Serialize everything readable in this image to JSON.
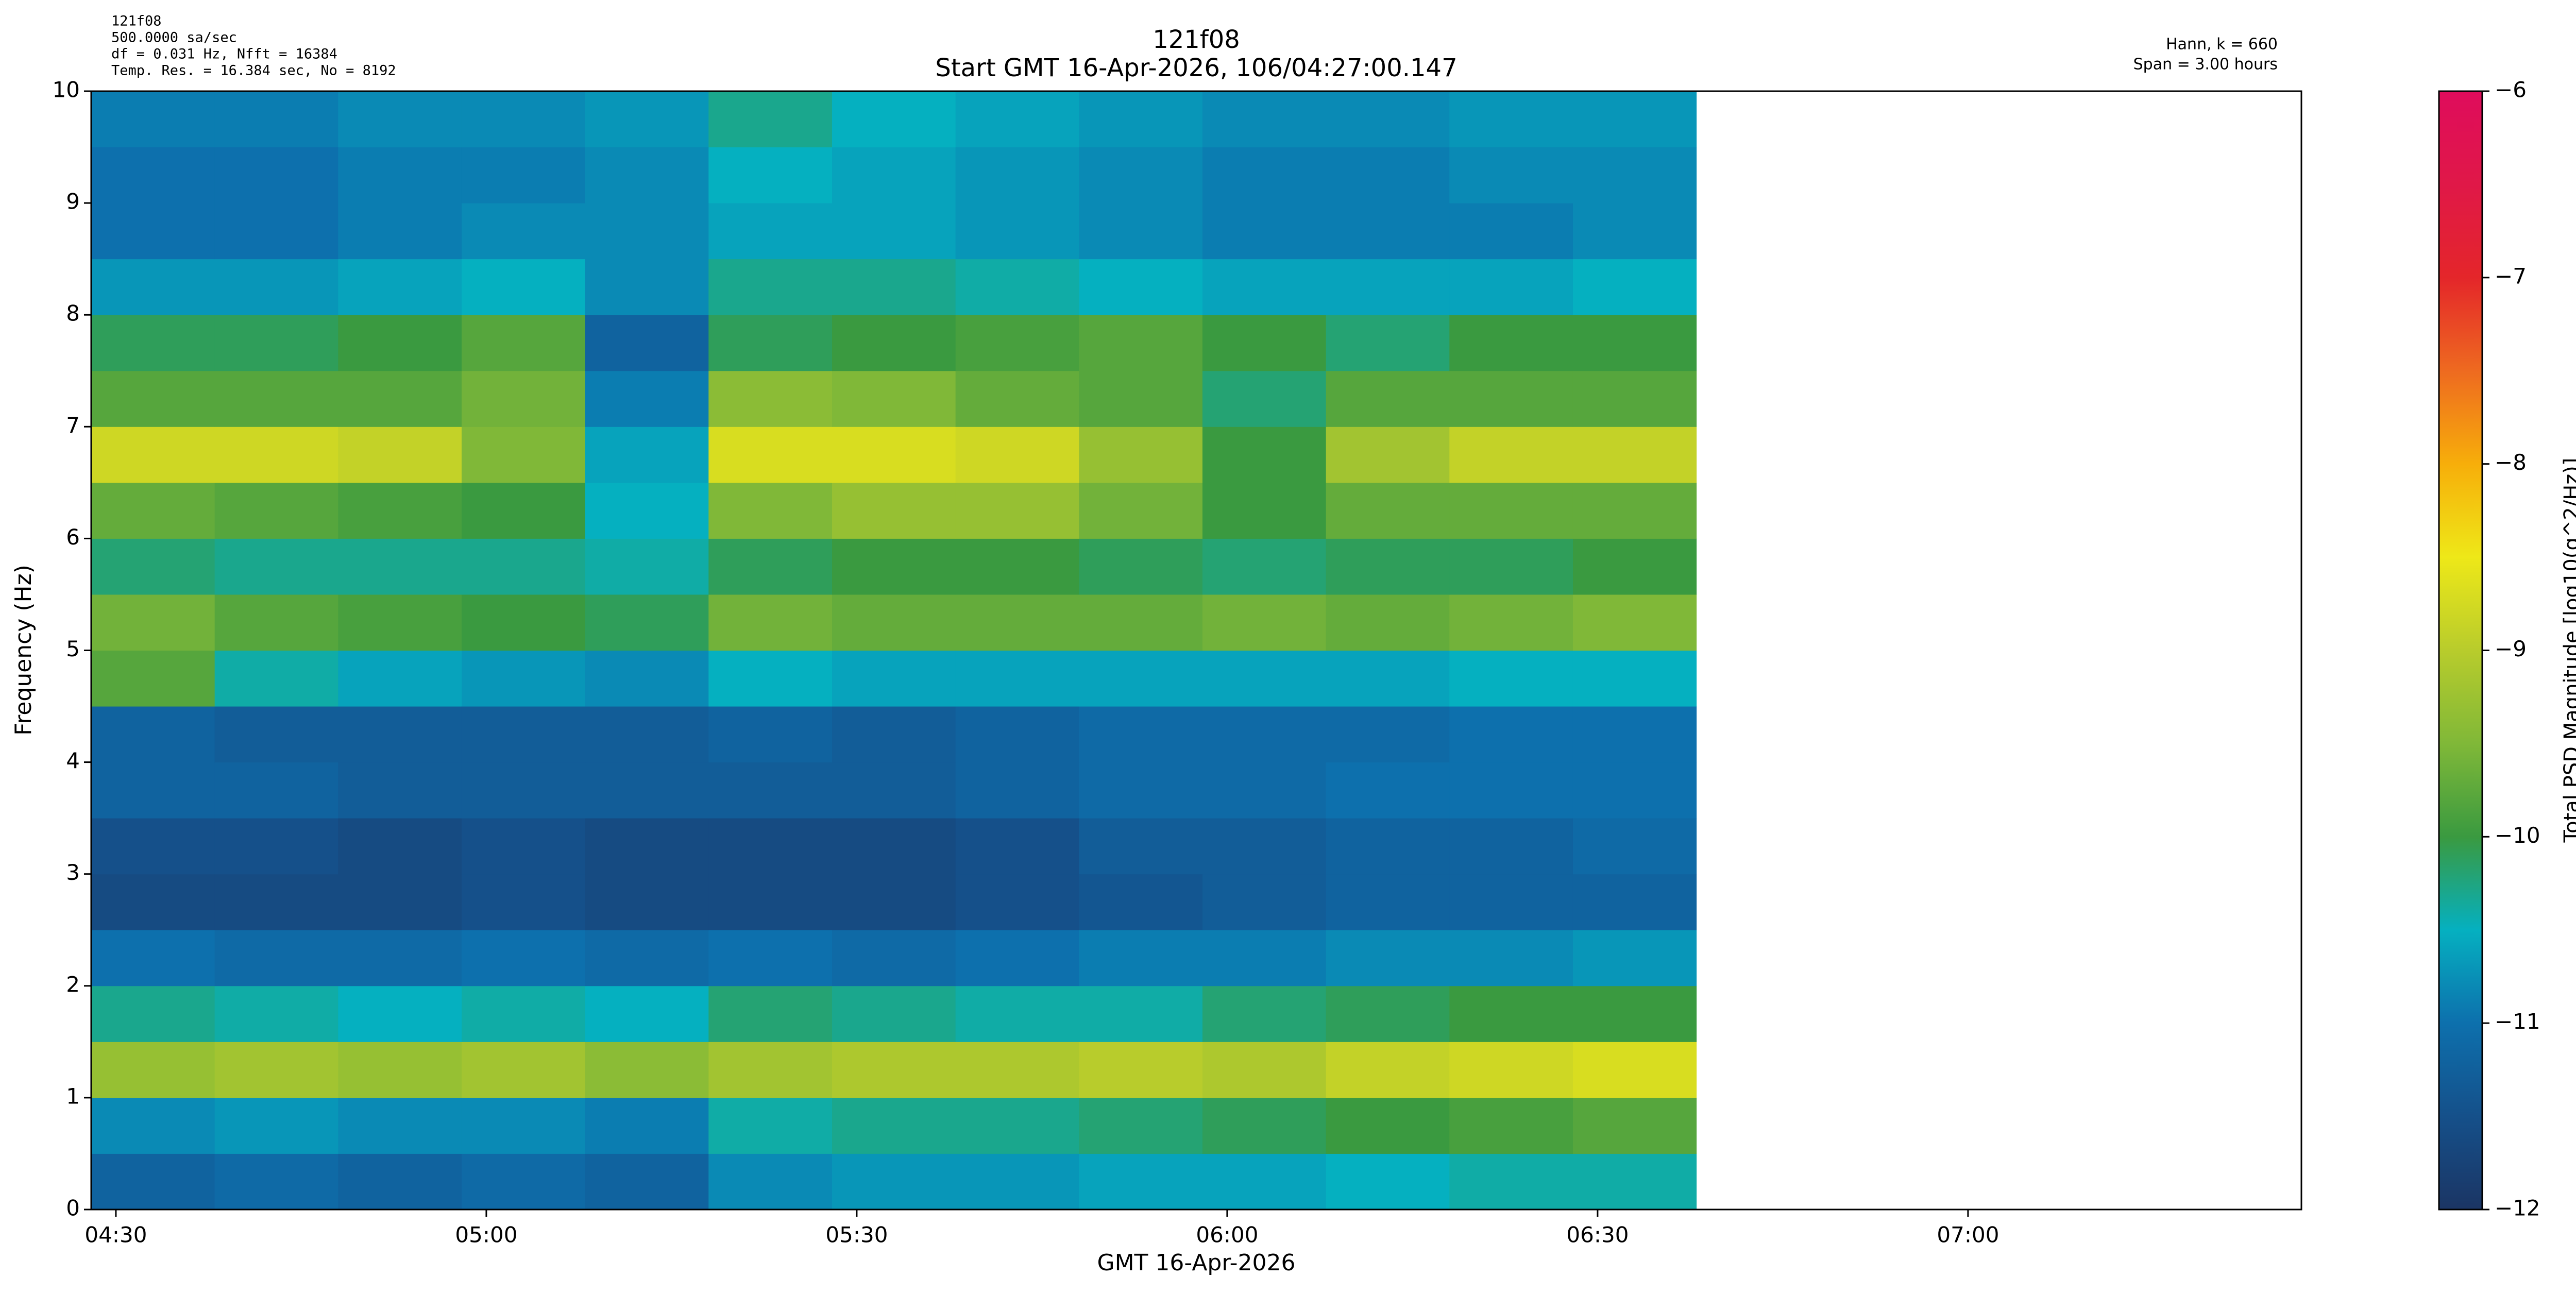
{
  "chart_data": {
    "type": "heatmap",
    "title": "121f08",
    "subtitle": "Start GMT 16-Apr-2026, 106/04:27:00.147",
    "top_left_notes": [
      "121f08",
      "500.0000 sa/sec",
      "df = 0.031 Hz,  Nfft = 16384",
      "Temp. Res. = 16.384 sec, No = 8192"
    ],
    "top_right_notes": [
      "Hann, k = 660",
      "Span = 3.00 hours"
    ],
    "xlabel": "GMT 16-Apr-2026",
    "ylabel": "Frequency (Hz)",
    "xlim": [
      "04:28",
      "07:27"
    ],
    "xticks": [
      "04:30",
      "05:00",
      "05:30",
      "06:00",
      "06:30",
      "07:00"
    ],
    "ylim": [
      0,
      10
    ],
    "yticks": [
      0,
      1,
      2,
      3,
      4,
      5,
      6,
      7,
      8,
      9,
      10
    ],
    "x_edges": [
      "04:28",
      "04:38",
      "04:48",
      "04:58",
      "05:08",
      "05:18",
      "05:28",
      "05:38",
      "05:48",
      "05:58",
      "06:08",
      "06:18",
      "06:28",
      "06:38"
    ],
    "y_edges": [
      0,
      0.5,
      1,
      1.5,
      2,
      2.5,
      3,
      3.5,
      4,
      4.5,
      5,
      5.5,
      6,
      6.5,
      7,
      7.5,
      8,
      8.5,
      9,
      9.5,
      10
    ],
    "z": [
      [
        -11.2,
        -11.1,
        -11.2,
        -11.1,
        -11.2,
        -10.8,
        -10.7,
        -10.7,
        -10.6,
        -10.6,
        -10.5,
        -10.4,
        -10.4
      ],
      [
        -10.8,
        -10.7,
        -10.8,
        -10.8,
        -10.9,
        -10.4,
        -10.3,
        -10.3,
        -10.2,
        -10.1,
        -10.0,
        -9.9,
        -9.8
      ],
      [
        -9.3,
        -9.2,
        -9.3,
        -9.2,
        -9.4,
        -9.2,
        -9.1,
        -9.1,
        -9.0,
        -9.1,
        -8.9,
        -8.8,
        -8.7
      ],
      [
        -10.3,
        -10.4,
        -10.5,
        -10.4,
        -10.5,
        -10.2,
        -10.3,
        -10.4,
        -10.4,
        -10.2,
        -10.1,
        -10.0,
        -10.0
      ],
      [
        -11.0,
        -11.1,
        -11.1,
        -11.0,
        -11.1,
        -11.0,
        -11.1,
        -11.0,
        -10.9,
        -10.9,
        -10.8,
        -10.8,
        -10.7
      ],
      [
        -11.6,
        -11.6,
        -11.6,
        -11.5,
        -11.6,
        -11.6,
        -11.6,
        -11.5,
        -11.4,
        -11.3,
        -11.2,
        -11.2,
        -11.2
      ],
      [
        -11.5,
        -11.5,
        -11.6,
        -11.5,
        -11.6,
        -11.6,
        -11.6,
        -11.5,
        -11.3,
        -11.3,
        -11.2,
        -11.2,
        -11.1
      ],
      [
        -11.2,
        -11.2,
        -11.3,
        -11.3,
        -11.3,
        -11.3,
        -11.3,
        -11.2,
        -11.1,
        -11.1,
        -11.0,
        -11.0,
        -11.0
      ],
      [
        -11.2,
        -11.3,
        -11.3,
        -11.3,
        -11.3,
        -11.2,
        -11.3,
        -11.2,
        -11.1,
        -11.1,
        -11.1,
        -11.0,
        -11.0
      ],
      [
        -9.8,
        -10.4,
        -10.6,
        -10.7,
        -10.8,
        -10.5,
        -10.6,
        -10.6,
        -10.6,
        -10.6,
        -10.6,
        -10.5,
        -10.5
      ],
      [
        -9.6,
        -9.8,
        -9.9,
        -10.0,
        -10.1,
        -9.6,
        -9.7,
        -9.7,
        -9.7,
        -9.6,
        -9.7,
        -9.6,
        -9.5
      ],
      [
        -10.2,
        -10.3,
        -10.3,
        -10.3,
        -10.4,
        -10.1,
        -10.0,
        -10.0,
        -10.1,
        -10.2,
        -10.1,
        -10.1,
        -10.0
      ],
      [
        -9.7,
        -9.8,
        -9.9,
        -10.0,
        -10.5,
        -9.5,
        -9.3,
        -9.3,
        -9.6,
        -10.0,
        -9.7,
        -9.7,
        -9.7
      ],
      [
        -8.8,
        -8.8,
        -8.9,
        -9.5,
        -10.6,
        -8.7,
        -8.7,
        -8.8,
        -9.3,
        -10.0,
        -9.2,
        -8.9,
        -8.9
      ],
      [
        -9.8,
        -9.8,
        -9.8,
        -9.6,
        -10.9,
        -9.4,
        -9.5,
        -9.7,
        -9.8,
        -10.2,
        -9.8,
        -9.8,
        -9.8
      ],
      [
        -10.1,
        -10.1,
        -10.0,
        -9.8,
        -11.2,
        -10.1,
        -10.0,
        -9.9,
        -9.8,
        -10.0,
        -10.2,
        -10.0,
        -10.0
      ],
      [
        -10.7,
        -10.7,
        -10.6,
        -10.5,
        -10.8,
        -10.3,
        -10.3,
        -10.4,
        -10.5,
        -10.6,
        -10.6,
        -10.6,
        -10.5
      ],
      [
        -11.0,
        -11.0,
        -10.9,
        -10.8,
        -10.8,
        -10.6,
        -10.6,
        -10.7,
        -10.8,
        -10.9,
        -10.9,
        -10.9,
        -10.8
      ],
      [
        -11.0,
        -11.0,
        -10.9,
        -10.9,
        -10.8,
        -10.5,
        -10.6,
        -10.7,
        -10.8,
        -10.9,
        -10.9,
        -10.8,
        -10.8
      ],
      [
        -10.9,
        -10.9,
        -10.8,
        -10.8,
        -10.7,
        -10.3,
        -10.5,
        -10.6,
        -10.7,
        -10.8,
        -10.8,
        -10.7,
        -10.7
      ]
    ],
    "colorbar": {
      "label": "Total PSD Magnitude [log10(g^2/Hz)]",
      "clim": [
        -12,
        -6
      ],
      "ticks": [
        {
          "value": -12,
          "label": "−12"
        },
        {
          "value": -11,
          "label": "−11"
        },
        {
          "value": -10,
          "label": "−10"
        },
        {
          "value": -9,
          "label": "−9"
        },
        {
          "value": -8,
          "label": "−8"
        },
        {
          "value": -7,
          "label": "−7"
        },
        {
          "value": -6,
          "label": "−6"
        }
      ],
      "colormap": [
        "#1b3564",
        "#15508a",
        "#0d70ad",
        "#05b0c0",
        "#3a9a40",
        "#80b838",
        "#b8cc2c",
        "#eee818",
        "#f7ae0a",
        "#ee6a20",
        "#e4262a",
        "#e01848",
        "#df0c5c"
      ]
    },
    "title_color": "#0a0a80"
  }
}
